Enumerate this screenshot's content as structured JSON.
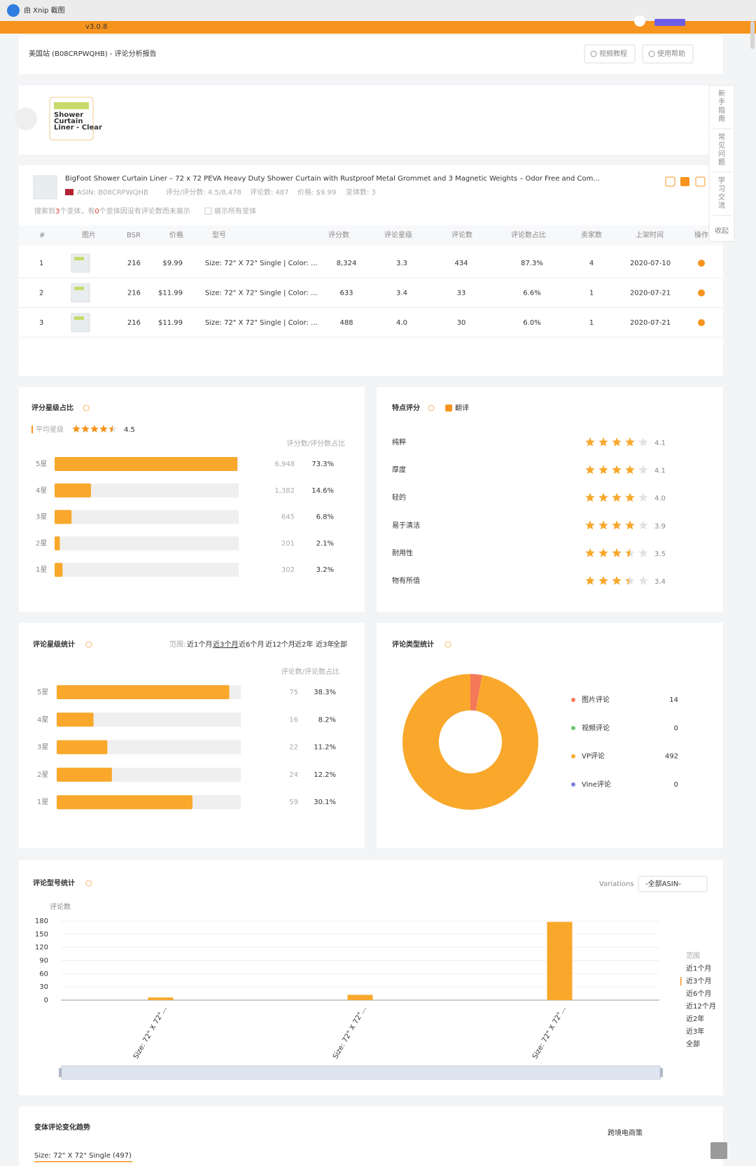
{
  "titlebar": {
    "app": "由 Xnip 截图"
  },
  "topbar": {
    "version": "v3.0.8"
  },
  "header": {
    "title": "美国站 (B08CRPWQHB) - 评论分析报告",
    "buttons": [
      "视频教程",
      "使用帮助"
    ]
  },
  "sidebar": [
    "新手指南",
    "常见问题",
    "学习交流",
    "收起"
  ],
  "carousel": {
    "thumb": [
      "Shower",
      "Curtain",
      "Liner - Clear"
    ]
  },
  "product": {
    "title": "BigFoot Shower Curtain Liner – 72 x 72 PEVA Heavy Duty Shower Curtain with Rustproof Metal Grommet and 3 Magnetic Weights – Odor Free and Com...",
    "asin": "ASIN: B08CRPWQHB",
    "rating": "评分/评分数: 4.5/8,478",
    "reviews": "评论数: 487",
    "price": "价格: $9.99",
    "variants": "变体数: 3",
    "summary": [
      "搜索到",
      "3",
      "个变体，有",
      "0",
      "个变体因没有评论数而未展示"
    ],
    "show_all": "展示所有变体"
  },
  "variant_table": {
    "columns": [
      "#",
      "图片",
      "BSR",
      "价格",
      "型号",
      "评分数",
      "评论星级",
      "评论数",
      "评论数占比",
      "卖家数",
      "上架时间",
      "操作"
    ],
    "rows": [
      [
        "1",
        "216",
        "$9.99",
        "Size: 72\" X 72\" Single | Color: ...",
        "8,324",
        "3.3",
        "434",
        "87.3%",
        "4",
        "2020-07-10"
      ],
      [
        "2",
        "216",
        "$11.99",
        "Size: 72\" X 72\" Single | Color: ...",
        "633",
        "3.4",
        "33",
        "6.6%",
        "1",
        "2020-07-21"
      ],
      [
        "3",
        "216",
        "$11.99",
        "Size: 72\" X 72\" Single | Color: ...",
        "488",
        "4.0",
        "30",
        "6.0%",
        "1",
        "2020-07-21"
      ]
    ]
  },
  "rating_chart": {
    "type": "bar",
    "title": "评分星级占比",
    "avg_label": "平均星级",
    "avg": 4.5,
    "header": "评分数/评分数占比",
    "categories": [
      "5星",
      "4星",
      "3星",
      "2星",
      "1星"
    ],
    "values": [
      6948,
      1382,
      645,
      201,
      302
    ],
    "value_labels": [
      "6,948",
      "1,382",
      "645",
      "201",
      "302"
    ],
    "shares": [
      "73.3%",
      "14.6%",
      "6.8%",
      "2.1%",
      "3.2%"
    ],
    "xlim": [
      0,
      7000
    ],
    "color": "#f9a82c"
  },
  "features": {
    "type": "rating",
    "title": "特点评分",
    "translate": "翻译",
    "categories": [
      "纯粹",
      "厚度",
      "轻的",
      "易于清洁",
      "耐用性",
      "物有所值"
    ],
    "values": [
      4.1,
      4.1,
      4.0,
      3.9,
      3.5,
      3.4
    ],
    "value_labels": [
      "4.1",
      "4.1",
      "4.0",
      "3.9",
      "3.5",
      "3.4"
    ],
    "color": "#f9a82c"
  },
  "review_stars": {
    "type": "bar",
    "title": "评论星级统计",
    "range_label": "范围:",
    "ranges": [
      "近1个月",
      "近3个月",
      "近6个月",
      "近12个月",
      "近2年",
      "近3年",
      "全部"
    ],
    "selected_range": 1,
    "header": "评论数/评论数占比",
    "categories": [
      "5星",
      "4星",
      "3星",
      "2星",
      "1星"
    ],
    "values": [
      75,
      16,
      22,
      24,
      59
    ],
    "shares": [
      "38.3%",
      "8.2%",
      "11.2%",
      "12.2%",
      "30.1%"
    ],
    "xlim": [
      0,
      80
    ],
    "color": "#f9a82c"
  },
  "review_types": {
    "type": "pie",
    "title": "评论类型统计",
    "categories": [
      "图片评论",
      "视频评论",
      "VP评论",
      "Vine评论"
    ],
    "values": [
      14,
      0,
      492,
      0
    ],
    "colors": [
      "#f4795b",
      "#6cc46c",
      "#f9a82c",
      "#7b80e0"
    ]
  },
  "model_chart": {
    "type": "bar",
    "title": "评论型号统计",
    "filter_label": "Variations",
    "filter_value": "-全部ASIN-",
    "y_label": "评论数",
    "categories": [
      "Size: 72\" X 72\"...",
      "Size: 72\" X 72\"...",
      "Size: 72\" X 72\"..."
    ],
    "values": [
      6,
      12,
      178
    ],
    "ylim": [
      0,
      180
    ],
    "yticks": [
      0,
      30,
      60,
      90,
      120,
      150,
      180
    ],
    "grid": true,
    "color": "#f9a82c",
    "legend_title": "范围",
    "ranges": [
      "近1个月",
      "近3个月",
      "近6个月",
      "近12个月",
      "近2年",
      "近3年",
      "全部"
    ],
    "selected_range": 1
  },
  "trend": {
    "title": "变体评论变化趋势",
    "tab": "Size: 72\" X 72\" Single (497)"
  },
  "watermark": "跨境电商策"
}
